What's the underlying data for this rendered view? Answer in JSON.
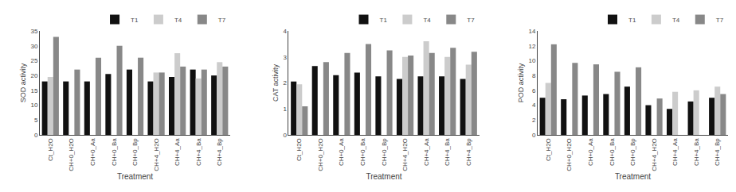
{
  "chart_data": [
    {
      "type": "bar",
      "categories": [
        "Ct_H2O",
        "CH+0_H2O",
        "CH+0_Aa",
        "CH+0_Ba",
        "CH+0_Bp",
        "CH+4_H2O",
        "CH+4_Aa",
        "CH+4_Ba",
        "CH+4_Bp"
      ],
      "series": [
        {
          "name": "T1",
          "color": "#111111",
          "values": [
            18,
            18,
            18,
            20.5,
            22,
            18,
            19.5,
            22,
            20
          ]
        },
        {
          "name": "T4",
          "color": "#cccccc",
          "values": [
            19.5,
            0,
            0,
            0,
            0,
            21,
            27.5,
            19,
            24.5
          ]
        },
        {
          "name": "T7",
          "color": "#888888",
          "values": [
            33,
            22,
            26,
            30,
            26,
            21,
            23,
            22,
            23
          ]
        }
      ],
      "x_label": "Treatment",
      "y_label": "SOD activity",
      "ylim": [
        0,
        35
      ],
      "yticks": [
        0,
        5,
        10,
        15,
        20,
        25,
        30,
        35
      ],
      "grid": false,
      "legend": "upper right"
    },
    {
      "type": "bar",
      "categories": [
        "Ct_H2O",
        "CH+0_H2O",
        "CH+0_Aa",
        "CH+0_Ba",
        "CH+0_Bp",
        "CH+4_H2O",
        "CH+4_Aa",
        "CH+4_Ba",
        "CH+4_Bp"
      ],
      "series": [
        {
          "name": "T1",
          "color": "#111111",
          "values": [
            2.05,
            2.65,
            2.3,
            2.4,
            2.25,
            2.15,
            2.25,
            2.25,
            2.15
          ]
        },
        {
          "name": "T4",
          "color": "#cccccc",
          "values": [
            1.95,
            0,
            0,
            0,
            0,
            3.0,
            3.6,
            3.0,
            2.7
          ]
        },
        {
          "name": "T7",
          "color": "#888888",
          "values": [
            1.1,
            2.8,
            3.15,
            3.5,
            3.25,
            3.05,
            3.15,
            3.35,
            3.2
          ]
        }
      ],
      "x_label": "Treatment",
      "y_label": "CAT activity",
      "ylim": [
        0,
        4
      ],
      "yticks": [
        0,
        1,
        2,
        3,
        4
      ],
      "grid": false,
      "legend": "upper right"
    },
    {
      "type": "bar",
      "categories": [
        "Ct_H2O",
        "CH+0_H2O",
        "CH+0_Aa",
        "CH+0_Ba",
        "CH+0_Bp",
        "CH+4_H2O",
        "CH+4_Aa",
        "CH+4_Ba",
        "CH+4_Bp"
      ],
      "series": [
        {
          "name": "T1",
          "color": "#111111",
          "values": [
            5.0,
            4.8,
            5.3,
            5.5,
            6.5,
            4.0,
            3.5,
            4.5,
            5.0
          ]
        },
        {
          "name": "T4",
          "color": "#cccccc",
          "values": [
            7.0,
            0,
            0,
            0,
            0,
            0,
            5.8,
            6.0,
            6.5
          ]
        },
        {
          "name": "T7",
          "color": "#888888",
          "values": [
            12.2,
            9.7,
            9.5,
            8.5,
            9.1,
            4.9,
            0,
            0,
            5.5
          ]
        }
      ],
      "x_label": "Treatment",
      "y_label": "POD activity",
      "ylim": [
        0,
        14
      ],
      "yticks": [
        0,
        2,
        4,
        6,
        8,
        10,
        12,
        14
      ],
      "grid": false,
      "legend": "upper right"
    }
  ]
}
